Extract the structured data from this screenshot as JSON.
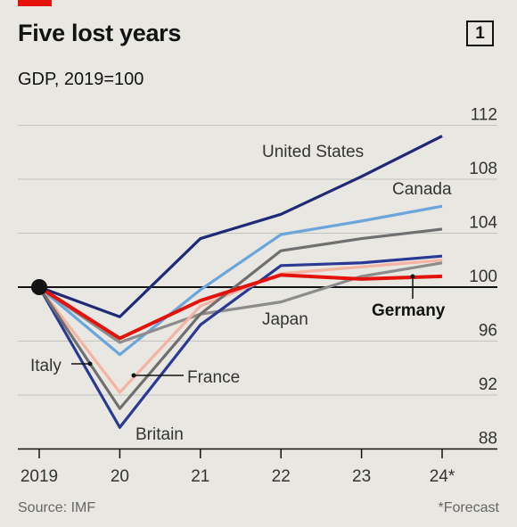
{
  "header": {
    "title": "Five lost years",
    "subtitle": "GDP, 2019=100",
    "chart_number": "1"
  },
  "footer": {
    "source": "Source: IMF",
    "note": "*Forecast"
  },
  "colors": {
    "background": "#e9e7e1",
    "accent": "#e3120b",
    "united_states": "#1e2a78",
    "canada": "#6aa6dc",
    "japan": "#8c8c8c",
    "britain": "#2a3a94",
    "france": "#f4b3a3",
    "italy": "#6f6f6f",
    "germany": "#e3120b"
  },
  "chart_data": {
    "type": "line",
    "title": "Five lost years",
    "subtitle": "GDP, 2019=100",
    "x": [
      "2019",
      "20",
      "21",
      "22",
      "23",
      "24*"
    ],
    "ylim": [
      88,
      112
    ],
    "yticks": [
      88,
      92,
      96,
      100,
      104,
      108,
      112
    ],
    "grid": true,
    "series": [
      {
        "name": "United States",
        "color": "#1e2a78",
        "values": [
          100,
          97.8,
          103.6,
          105.4,
          108.2,
          111.2
        ]
      },
      {
        "name": "Canada",
        "color": "#6aa6dc",
        "values": [
          100,
          95.0,
          99.8,
          103.9,
          104.9,
          106.0
        ]
      },
      {
        "name": "Japan",
        "color": "#8c8c8c",
        "values": [
          100,
          95.9,
          98.0,
          98.9,
          100.8,
          101.8
        ]
      },
      {
        "name": "Britain",
        "color": "#2a3a94",
        "values": [
          100,
          89.6,
          97.2,
          101.6,
          101.8,
          102.3
        ]
      },
      {
        "name": "France",
        "color": "#f4b3a3",
        "values": [
          100,
          92.2,
          98.6,
          101.0,
          101.5,
          102.0
        ]
      },
      {
        "name": "Italy",
        "color": "#6f6f6f",
        "values": [
          100,
          91.0,
          98.0,
          102.7,
          103.6,
          104.3
        ]
      },
      {
        "name": "Germany",
        "color": "#e3120b",
        "values": [
          100,
          96.2,
          99.0,
          100.9,
          100.6,
          100.8
        ]
      }
    ],
    "labels": {
      "united_states": "United States",
      "canada": "Canada",
      "japan": "Japan",
      "germany": "Germany",
      "italy": "Italy",
      "france": "France",
      "britain": "Britain"
    }
  }
}
